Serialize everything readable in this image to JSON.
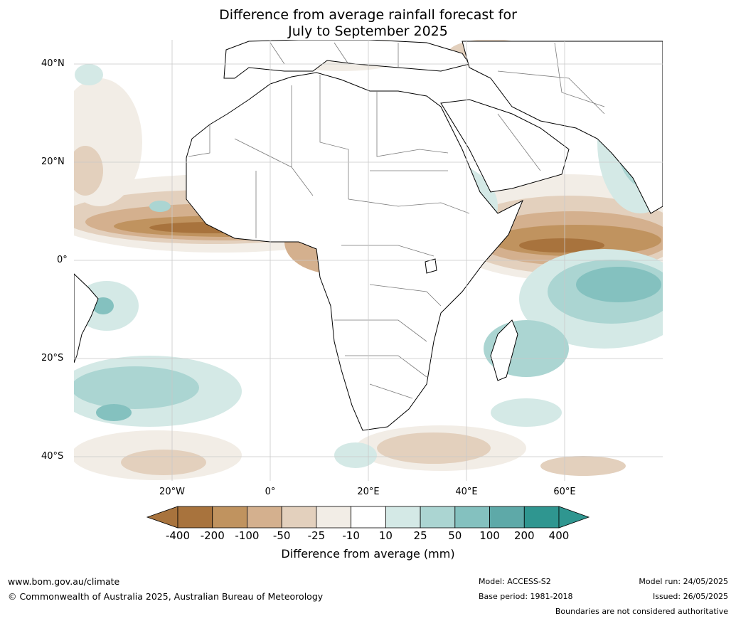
{
  "header": {
    "title_line1": "Difference from average rainfall forecast for",
    "title_line2": "July to September 2025"
  },
  "map": {
    "latitude_labels": [
      "40°N",
      "20°N",
      "0°",
      "20°S",
      "40°S"
    ],
    "longitude_labels": [
      "20°W",
      "0°",
      "20°E",
      "40°E",
      "60°E"
    ]
  },
  "colorbar": {
    "tick_labels": [
      "-400",
      "-200",
      "-100",
      "-50",
      "-25",
      "-10",
      "10",
      "25",
      "50",
      "100",
      "200",
      "400"
    ],
    "colors": [
      "#a8733d",
      "#c0935f",
      "#d4b08e",
      "#e3d0bd",
      "#f2ede6",
      "#ffffff",
      "#d4e9e6",
      "#abd5d2",
      "#84c1bf",
      "#5ea9a8",
      "#2f9690"
    ],
    "title": "Difference from average (mm)"
  },
  "footer": {
    "website": "www.bom.gov.au/climate",
    "copyright": "© Commonwealth of Australia 2025, Australian Bureau of Meteorology",
    "model": "Model: ACCESS-S2",
    "base_period": "Base period: 1981-2018",
    "model_run": "Model run: 24/05/2025",
    "issued": "Issued: 26/05/2025",
    "disclaimer": "Boundaries are not considered authoritative"
  }
}
